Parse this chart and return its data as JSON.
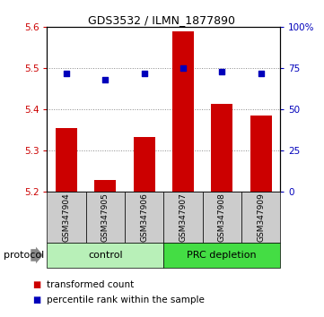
{
  "title": "GDS3532 / ILMN_1877890",
  "samples": [
    "GSM347904",
    "GSM347905",
    "GSM347906",
    "GSM347907",
    "GSM347908",
    "GSM347909"
  ],
  "bar_values": [
    5.355,
    5.228,
    5.333,
    5.59,
    5.413,
    5.385
  ],
  "percentile_values": [
    72,
    68,
    72,
    75,
    73,
    72
  ],
  "ylim_left": [
    5.2,
    5.6
  ],
  "ylim_right": [
    0,
    100
  ],
  "yticks_left": [
    5.2,
    5.3,
    5.4,
    5.5,
    5.6
  ],
  "yticks_right": [
    0,
    25,
    50,
    75,
    100
  ],
  "bar_color": "#cc0000",
  "percentile_color": "#0000bb",
  "bar_bottom": 5.2,
  "groups": [
    {
      "label": "control",
      "color": "#b8f0b8"
    },
    {
      "label": "PRC depletion",
      "color": "#44dd44"
    }
  ],
  "legend_bar_label": "transformed count",
  "legend_dot_label": "percentile rank within the sample",
  "protocol_label": "protocol",
  "sample_bg_color": "#cccccc",
  "plot_bg_color": "#ffffff",
  "title_fontsize": 9,
  "axis_fontsize": 7.5,
  "tick_fontsize": 7.5,
  "sample_fontsize": 6.5,
  "group_fontsize": 8,
  "legend_fontsize": 7.5
}
